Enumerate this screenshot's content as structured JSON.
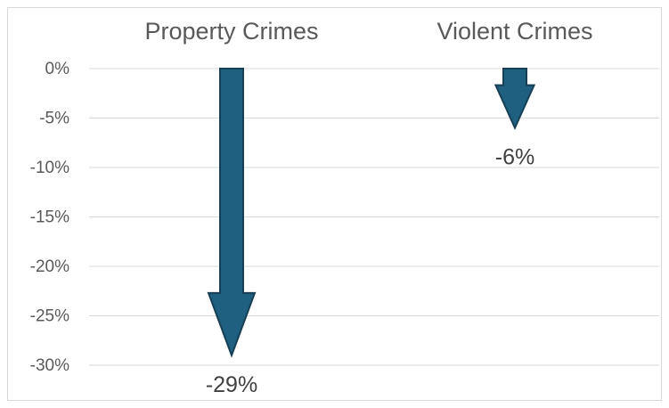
{
  "chart_data": {
    "type": "bar",
    "categories": [
      "Property Crimes",
      "Violent Crimes"
    ],
    "values": [
      -29,
      -6
    ],
    "data_labels": [
      "-29%",
      "-6%"
    ],
    "y_tick_labels": [
      "0%",
      "-5%",
      "-10%",
      "-15%",
      "-20%",
      "-25%",
      "-30%"
    ],
    "y_tick_values": [
      0,
      -5,
      -10,
      -15,
      -20,
      -25,
      -30
    ],
    "ylim": [
      -30,
      0
    ],
    "grid": true,
    "mark_style": "down-arrow",
    "bar_color": "#1f5f80",
    "bar_edge_color": "#173f55",
    "category_axis_position": "top"
  }
}
